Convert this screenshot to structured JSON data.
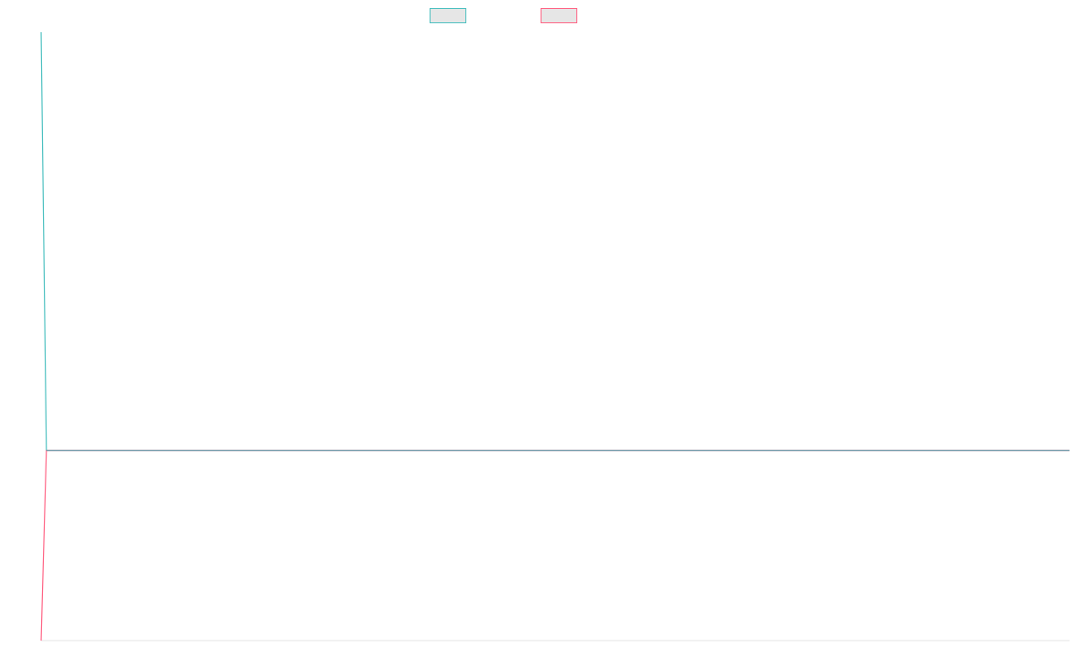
{
  "chart_data": {
    "type": "line",
    "title": "",
    "xlabel": "",
    "ylabel": "",
    "grid": false,
    "legend": {
      "position": "top-center",
      "entries": [
        {
          "name": "",
          "color": "#4bc0c0"
        },
        {
          "name": "",
          "color": "#ff6384"
        }
      ]
    },
    "ylim": [
      -1,
      2.2
    ],
    "x_points": 199,
    "series": [
      {
        "name": "",
        "color": "#4bc0c0",
        "values_note_omitted": true,
        "start_value": 2.2,
        "end_value": 0
      },
      {
        "name": "",
        "color": "#ff6384",
        "start_value": -1,
        "end_value": 0
      }
    ]
  }
}
